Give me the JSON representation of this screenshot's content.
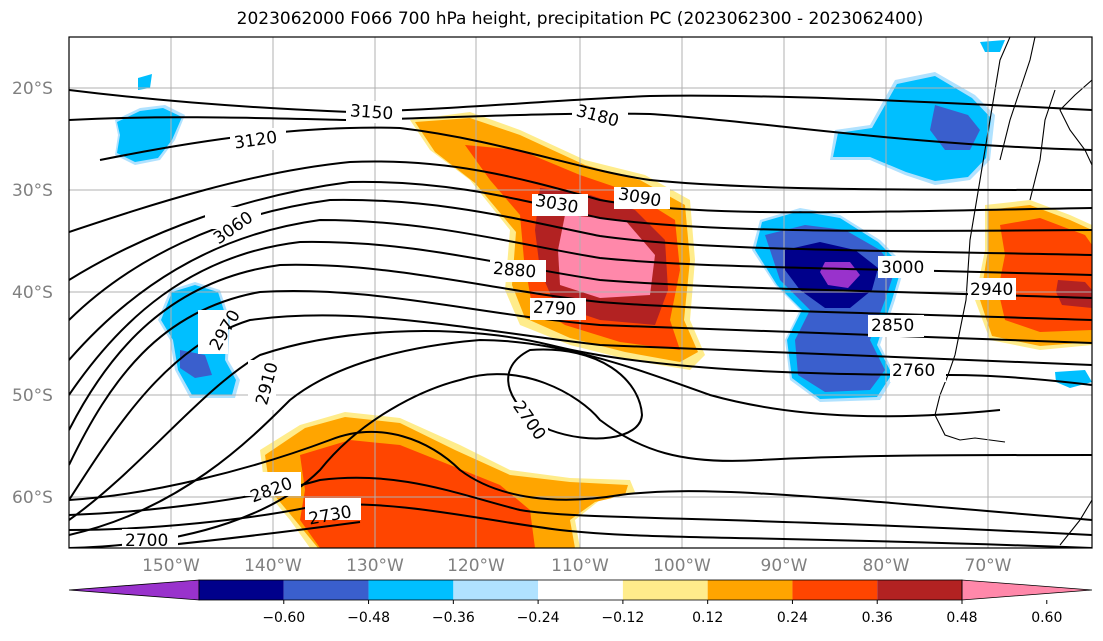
{
  "title": "2023062000 F066 700 hPa height, precipitation PC (2023062300 - 2023062400)",
  "lat_labels": [
    "20°S",
    "30°S",
    "40°S",
    "50°S",
    "60°S"
  ],
  "lon_labels": [
    "150°W",
    "140°W",
    "130°W",
    "120°W",
    "110°W",
    "100°W",
    "90°W",
    "80°W",
    "70°W"
  ],
  "contour_labels": [
    "3150",
    "3180",
    "3120",
    "3060",
    "3090",
    "3030",
    "2880",
    "3000",
    "2940",
    "2790",
    "2970",
    "2850",
    "2760",
    "2910",
    "2700",
    "2820",
    "2730",
    "2700"
  ],
  "colorbar": {
    "ticks": [
      "−0.60",
      "−0.48",
      "−0.36",
      "−0.24",
      "−0.12",
      "0.12",
      "0.24",
      "0.36",
      "0.48",
      "0.60"
    ],
    "colors": [
      "#9932cc",
      "#00008b",
      "#3a5fcd",
      "#00bfff",
      "#b0e2ff",
      "#ffffff",
      "#ffec8b",
      "#ffa500",
      "#ff4500",
      "#b22222",
      "#ff88aa"
    ]
  }
}
